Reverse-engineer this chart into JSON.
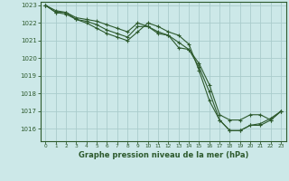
{
  "title": "Graphe pression niveau de la mer (hPa)",
  "bg_color": "#cce8e8",
  "grid_color": "#aacccc",
  "line_color": "#2d5a2d",
  "xlim": [
    -0.5,
    23.5
  ],
  "ylim": [
    1015.3,
    1023.2
  ],
  "yticks": [
    1016,
    1017,
    1018,
    1019,
    1020,
    1021,
    1022,
    1023
  ],
  "xticks": [
    0,
    1,
    2,
    3,
    4,
    5,
    6,
    7,
    8,
    9,
    10,
    11,
    12,
    13,
    14,
    15,
    16,
    17,
    18,
    19,
    20,
    21,
    22,
    23
  ],
  "series1": {
    "x": [
      0,
      1,
      2,
      3,
      4,
      5,
      6,
      7,
      8,
      9,
      10,
      11,
      12,
      13,
      14,
      15,
      16,
      17,
      18,
      19,
      20,
      21,
      22,
      23
    ],
    "y": [
      1023.0,
      1022.6,
      1022.6,
      1022.2,
      1022.1,
      1021.9,
      1021.6,
      1021.4,
      1021.2,
      1021.8,
      1021.8,
      1021.4,
      1021.3,
      1020.6,
      1020.5,
      1019.7,
      1018.5,
      1016.8,
      1016.5,
      1016.5,
      1016.8,
      1016.8,
      1016.5,
      1017.0
    ]
  },
  "series2": {
    "x": [
      0,
      1,
      2,
      3,
      4,
      5,
      6,
      7,
      8,
      9,
      10,
      11,
      12,
      13,
      14,
      15,
      16,
      17,
      18,
      19,
      20,
      21,
      22,
      23
    ],
    "y": [
      1023.0,
      1022.7,
      1022.6,
      1022.3,
      1022.2,
      1022.1,
      1021.9,
      1021.7,
      1021.5,
      1022.0,
      1021.8,
      1021.5,
      1021.3,
      1020.9,
      1020.5,
      1019.5,
      1018.1,
      1016.5,
      1015.9,
      1015.9,
      1016.2,
      1016.2,
      1016.5,
      1017.0
    ]
  },
  "series3": {
    "x": [
      0,
      1,
      2,
      3,
      4,
      5,
      6,
      7,
      8,
      9,
      10,
      11,
      12,
      13,
      14,
      15,
      16,
      17,
      18,
      19,
      20,
      21,
      22,
      23
    ],
    "y": [
      1023.0,
      1022.6,
      1022.5,
      1022.2,
      1022.0,
      1021.7,
      1021.4,
      1021.2,
      1021.0,
      1021.5,
      1022.0,
      1021.8,
      1021.5,
      1021.3,
      1020.8,
      1019.3,
      1017.6,
      1016.5,
      1015.9,
      1015.9,
      1016.2,
      1016.3,
      1016.6,
      1017.0
    ]
  }
}
